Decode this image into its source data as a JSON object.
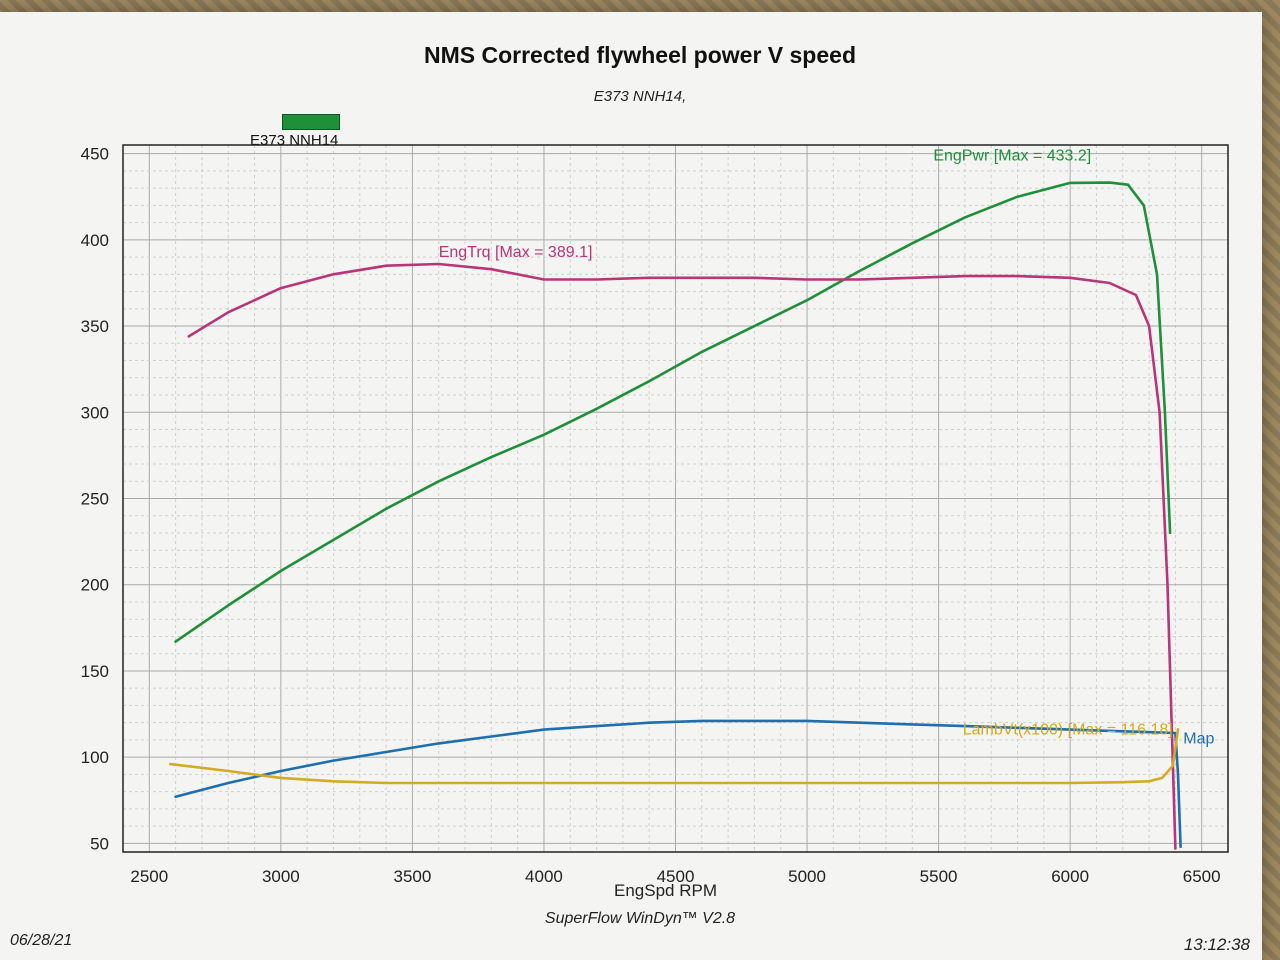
{
  "chart_data": {
    "type": "line",
    "title": "NMS Corrected flywheel power V speed",
    "subtitle": "E373 NNH14,",
    "legend": "E373 NNH14",
    "xlabel": "EngSpd  RPM",
    "ylabel": "",
    "xlim": [
      2400,
      6600
    ],
    "ylim": [
      45,
      455
    ],
    "x_ticks": [
      2500,
      3000,
      3500,
      4000,
      4500,
      5000,
      5500,
      6000,
      6500
    ],
    "y_ticks": [
      50,
      100,
      150,
      200,
      250,
      300,
      350,
      400,
      450
    ],
    "grid": true,
    "series": [
      {
        "name": "EngPwr",
        "label": "EngPwr [Max = 433.2]",
        "color": "#1f8f3a",
        "x": [
          2600,
          2800,
          3000,
          3200,
          3400,
          3600,
          3800,
          4000,
          4200,
          4400,
          4600,
          4800,
          5000,
          5200,
          5400,
          5600,
          5800,
          6000,
          6150,
          6220,
          6280,
          6330,
          6360,
          6380
        ],
        "y": [
          167,
          188,
          208,
          226,
          244,
          260,
          274,
          287,
          302,
          318,
          335,
          350,
          365,
          382,
          398,
          413,
          425,
          433,
          433.2,
          432,
          420,
          380,
          300,
          230
        ]
      },
      {
        "name": "EngTrq",
        "label": "EngTrq [Max = 389.1]",
        "color": "#b8357a",
        "x": [
          2650,
          2800,
          3000,
          3200,
          3400,
          3600,
          3800,
          4000,
          4200,
          4400,
          4600,
          4800,
          5000,
          5200,
          5400,
          5600,
          5800,
          6000,
          6150,
          6250,
          6300,
          6340,
          6370,
          6400
        ],
        "y": [
          344,
          358,
          372,
          380,
          385,
          386,
          383,
          377,
          377,
          378,
          378,
          378,
          377,
          377,
          378,
          379,
          379,
          378,
          375,
          368,
          350,
          300,
          200,
          47
        ]
      },
      {
        "name": "Map",
        "label": "Map",
        "color": "#1e6fb0",
        "x": [
          2600,
          2800,
          3000,
          3200,
          3400,
          3600,
          3800,
          4000,
          4200,
          4400,
          4600,
          4800,
          5000,
          5200,
          5400,
          5600,
          5800,
          6000,
          6200,
          6400,
          6410,
          6420
        ],
        "y": [
          77,
          85,
          92,
          98,
          103,
          108,
          112,
          116,
          118,
          120,
          121,
          121,
          121,
          120,
          119,
          118,
          117,
          116,
          115,
          114,
          90,
          48
        ]
      },
      {
        "name": "LambVt(x100)",
        "label": "LambVt(x100) [Max = 116.18]",
        "color": "#d4a923",
        "x": [
          2580,
          2800,
          3000,
          3200,
          3400,
          3600,
          3800,
          4000,
          4200,
          4400,
          4600,
          4800,
          5000,
          5200,
          5400,
          5600,
          5800,
          6000,
          6200,
          6300,
          6350,
          6390,
          6410
        ],
        "y": [
          96,
          92,
          88,
          86,
          85,
          85,
          85,
          85,
          85,
          85,
          85,
          85,
          85,
          85,
          85,
          85,
          85,
          85,
          85.5,
          86,
          88,
          95,
          116.18
        ]
      }
    ]
  },
  "footer": {
    "software": "SuperFlow WinDyn™ V2.8",
    "date": "06/28/21",
    "time": "13:12:38"
  }
}
